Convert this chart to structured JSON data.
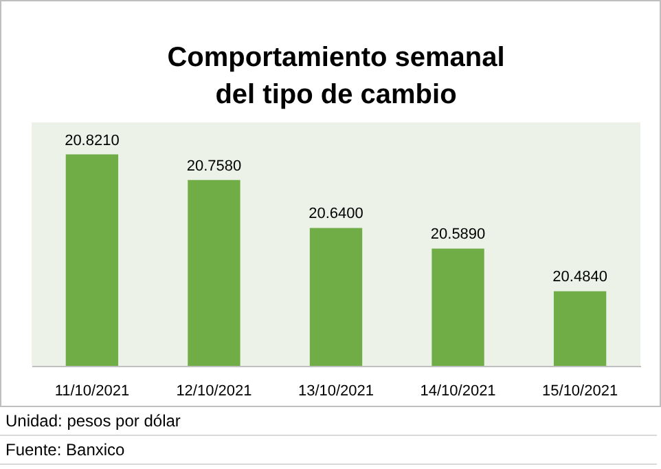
{
  "chart_data": {
    "type": "bar",
    "title": "Comportamiento semanal\ndel tipo de cambio",
    "categories": [
      "11/10/2021",
      "12/10/2021",
      "13/10/2021",
      "14/10/2021",
      "15/10/2021"
    ],
    "values": [
      20.821,
      20.758,
      20.64,
      20.589,
      20.484
    ],
    "value_labels": [
      "20.8210",
      "20.7580",
      "20.6400",
      "20.5890",
      "20.4840"
    ],
    "color": "#70ad47",
    "ylim": [
      20.3,
      20.9
    ],
    "annotations": [
      "Unidad: pesos por dólar",
      "Fuente: Banxico"
    ]
  }
}
